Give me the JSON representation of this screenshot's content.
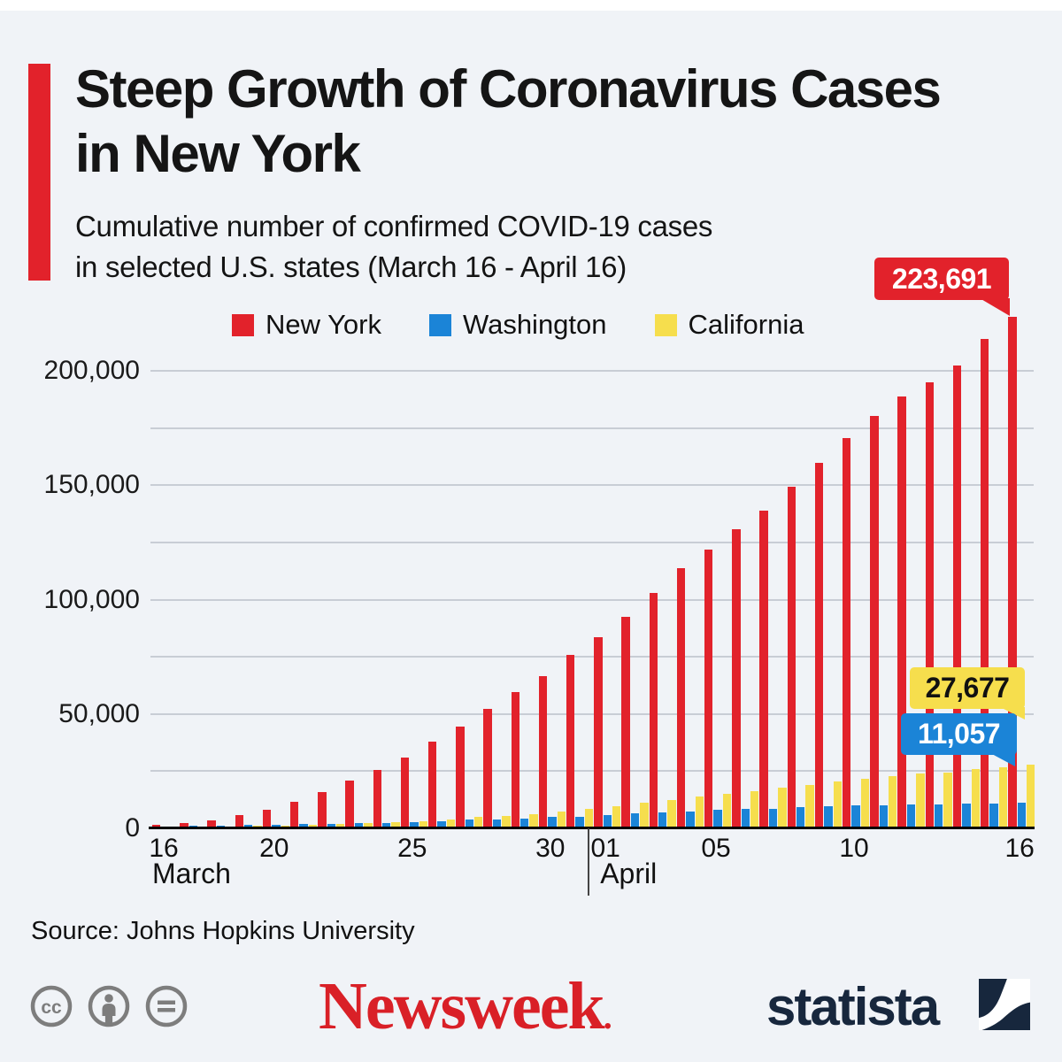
{
  "colors": {
    "background": "#f0f3f7",
    "top_strip": "#ffffff",
    "accent_red": "#e2222b",
    "new_york_red": "#e2222b",
    "washington_blue": "#1b84d7",
    "california_yellow": "#f6de4d",
    "gridline": "#c8cdd5",
    "axis": "#000000",
    "newsweek_red": "#d92027",
    "statista_navy": "#17273d",
    "cc_gray": "#7d7d7d"
  },
  "header": {
    "title_line1": "Steep Growth of Coronavirus Cases",
    "title_line2": "in New York",
    "subtitle_line1": "Cumulative number of confirmed COVID-19 cases",
    "subtitle_line2": "in selected U.S. states (March 16 - April 16)"
  },
  "legend": [
    {
      "label": "New York",
      "color": "#e2222b"
    },
    {
      "label": "Washington",
      "color": "#1b84d7"
    },
    {
      "label": "California",
      "color": "#f6de4d"
    }
  ],
  "chart_data": {
    "type": "bar",
    "title": "Cumulative number of confirmed COVID-19 cases in selected U.S. states (March 16 - April 16)",
    "xlabel": "",
    "ylabel": "",
    "ylim": [
      0,
      225000
    ],
    "grid": true,
    "gridline_step": 25000,
    "gridlines": [
      25000,
      50000,
      75000,
      100000,
      125000,
      150000,
      175000,
      200000
    ],
    "yticks": [
      {
        "value": 0,
        "label": "0"
      },
      {
        "value": 50000,
        "label": "50,000"
      },
      {
        "value": 100000,
        "label": "100,000"
      },
      {
        "value": 150000,
        "label": "150,000"
      },
      {
        "value": 200000,
        "label": "200,000"
      }
    ],
    "categories": [
      "March 16",
      "March 17",
      "March 18",
      "March 19",
      "March 20",
      "March 21",
      "March 22",
      "March 23",
      "March 24",
      "March 25",
      "March 26",
      "March 27",
      "March 28",
      "March 29",
      "March 30",
      "March 31",
      "April 1",
      "April 2",
      "April 3",
      "April 4",
      "April 5",
      "April 6",
      "April 7",
      "April 8",
      "April 9",
      "April 10",
      "April 11",
      "April 12",
      "April 13",
      "April 14",
      "April 15",
      "April 16"
    ],
    "series": [
      {
        "name": "New York",
        "color": "#e2222b",
        "values": [
          1700,
          2495,
          3615,
          5711,
          8310,
          11710,
          15793,
          20875,
          25681,
          30841,
          37877,
          44635,
          52318,
          59568,
          66497,
          75798,
          83712,
          92381,
          102863,
          113704,
          122031,
          130689,
          138863,
          149316,
          159937,
          170512,
          180458,
          188694,
          195031,
          202208,
          213779,
          223691
        ]
      },
      {
        "name": "Washington",
        "color": "#1b84d7",
        "values": [
          904,
          1076,
          1226,
          1376,
          1524,
          1793,
          1996,
          2221,
          2469,
          2580,
          3207,
          3700,
          4030,
          4310,
          4896,
          5186,
          5634,
          6585,
          6973,
          7498,
          7984,
          8384,
          8682,
          9097,
          9608,
          9887,
          10224,
          10411,
          10538,
          10694,
          10783,
          11057
        ]
      },
      {
        "name": "California",
        "color": "#f6de4d",
        "values": [
          588,
          732,
          893,
          1067,
          1283,
          1544,
          1851,
          2240,
          2644,
          3183,
          4060,
          4914,
          5565,
          6266,
          7421,
          8583,
          9816,
          11190,
          12569,
          13796,
          15202,
          16361,
          17620,
          19043,
          20615,
          21794,
          22795,
          23931,
          24334,
          25758,
          26686,
          27677
        ]
      }
    ],
    "x_ticks": [
      {
        "index": 0,
        "label": "16"
      },
      {
        "index": 4,
        "label": "20"
      },
      {
        "index": 9,
        "label": "25"
      },
      {
        "index": 14,
        "label": "30"
      },
      {
        "index": 16,
        "label": "01"
      },
      {
        "index": 20,
        "label": "05"
      },
      {
        "index": 25,
        "label": "10"
      },
      {
        "index": 31,
        "label": "16"
      }
    ],
    "month_labels": [
      {
        "index": 0,
        "label": "March"
      },
      {
        "index": 16,
        "label": "April"
      }
    ],
    "divider_index": 16,
    "legend_position": "top",
    "callouts": [
      {
        "series": "New York",
        "label": "223,691"
      },
      {
        "series": "California",
        "label": "27,677"
      },
      {
        "series": "Washington",
        "label": "11,057"
      }
    ]
  },
  "footer": {
    "source": "Source: Johns Hopkins University",
    "license_icons": [
      "cc-icon",
      "attribution-person-icon",
      "equals-nd-icon"
    ],
    "newsweek_logo": "Newsweek",
    "newsweek_dot": ".",
    "statista_logo": "statista"
  }
}
